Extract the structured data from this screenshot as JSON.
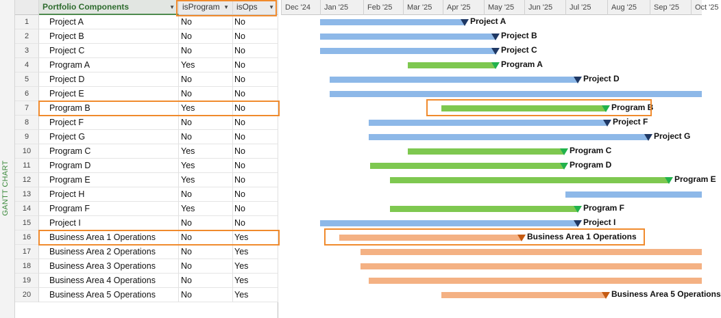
{
  "sidebar": {
    "label": "GANTT CHART"
  },
  "columns": {
    "name": "Portfolio Components",
    "is_program": "isProgram",
    "is_ops": "isOps"
  },
  "timeline": [
    "Dec '24",
    "Jan '25",
    "Feb '25",
    "Mar '25",
    "Apr '25",
    "May '25",
    "Jun '25",
    "Jul '25",
    "Aug '25",
    "Sep '25",
    "Oct '25"
  ],
  "colors": {
    "project": "#8db8e8",
    "program": "#7ec850",
    "operations": "#f4b183",
    "project_milestone": "#1f3864",
    "program_milestone": "#22b24c",
    "operations_milestone": "#c55a11",
    "highlight": "#f08a2c"
  },
  "rows": [
    {
      "num": "1",
      "name": "Project A",
      "is_program": "No",
      "is_ops": "No",
      "type": "project",
      "label": "Project A"
    },
    {
      "num": "2",
      "name": "Project B",
      "is_program": "No",
      "is_ops": "No",
      "type": "project",
      "label": "Project B"
    },
    {
      "num": "3",
      "name": "Project C",
      "is_program": "No",
      "is_ops": "No",
      "type": "project",
      "label": "Project C"
    },
    {
      "num": "4",
      "name": "Program A",
      "is_program": "Yes",
      "is_ops": "No",
      "type": "program",
      "label": "Program A"
    },
    {
      "num": "5",
      "name": "Project D",
      "is_program": "No",
      "is_ops": "No",
      "type": "project",
      "label": "Project D"
    },
    {
      "num": "6",
      "name": "Project E",
      "is_program": "No",
      "is_ops": "No",
      "type": "project",
      "label": ""
    },
    {
      "num": "7",
      "name": "Program B",
      "is_program": "Yes",
      "is_ops": "No",
      "type": "program",
      "label": "Program B",
      "highlight": true
    },
    {
      "num": "8",
      "name": "Project F",
      "is_program": "No",
      "is_ops": "No",
      "type": "project",
      "label": "Project F"
    },
    {
      "num": "9",
      "name": "Project G",
      "is_program": "No",
      "is_ops": "No",
      "type": "project",
      "label": "Project G"
    },
    {
      "num": "10",
      "name": "Program C",
      "is_program": "Yes",
      "is_ops": "No",
      "type": "program",
      "label": "Program C"
    },
    {
      "num": "11",
      "name": "Program D",
      "is_program": "Yes",
      "is_ops": "No",
      "type": "program",
      "label": "Program D"
    },
    {
      "num": "12",
      "name": "Program E",
      "is_program": "Yes",
      "is_ops": "No",
      "type": "program",
      "label": "Program E"
    },
    {
      "num": "13",
      "name": "Project H",
      "is_program": "No",
      "is_ops": "No",
      "type": "project",
      "label": ""
    },
    {
      "num": "14",
      "name": "Program F",
      "is_program": "Yes",
      "is_ops": "No",
      "type": "program",
      "label": "Program F"
    },
    {
      "num": "15",
      "name": "Project I",
      "is_program": "No",
      "is_ops": "No",
      "type": "project",
      "label": "Project I"
    },
    {
      "num": "16",
      "name": "Business Area 1 Operations",
      "is_program": "No",
      "is_ops": "Yes",
      "type": "operations",
      "label": "Business Area 1 Operations",
      "highlight": true
    },
    {
      "num": "17",
      "name": "Business Area 2 Operations",
      "is_program": "No",
      "is_ops": "Yes",
      "type": "operations",
      "label": ""
    },
    {
      "num": "18",
      "name": "Business Area 3 Operations",
      "is_program": "No",
      "is_ops": "Yes",
      "type": "operations",
      "label": ""
    },
    {
      "num": "19",
      "name": "Business Area 4 Operations",
      "is_program": "No",
      "is_ops": "Yes",
      "type": "operations",
      "label": ""
    },
    {
      "num": "20",
      "name": "Business Area 5 Operations",
      "is_program": "No",
      "is_ops": "Yes",
      "type": "operations",
      "label": "Business Area 5 Operations"
    }
  ],
  "schedule": [
    {
      "start": "2025-01-01",
      "end": "2025-04-17"
    },
    {
      "start": "2025-01-01",
      "end": "2025-05-10"
    },
    {
      "start": "2025-01-01",
      "end": "2025-05-10"
    },
    {
      "start": "2025-03-05",
      "end": "2025-05-10"
    },
    {
      "start": "2025-01-08",
      "end": "2025-07-10"
    },
    {
      "start": "2025-01-08",
      "end": null
    },
    {
      "start": "2025-03-31",
      "end": "2025-07-31"
    },
    {
      "start": "2025-02-05",
      "end": "2025-08-01"
    },
    {
      "start": "2025-02-05",
      "end": "2025-08-31"
    },
    {
      "start": "2025-03-05",
      "end": "2025-06-30"
    },
    {
      "start": "2025-02-06",
      "end": "2025-06-30"
    },
    {
      "start": "2025-02-20",
      "end": "2025-09-15"
    },
    {
      "start": "2025-07-01",
      "end": null
    },
    {
      "start": "2025-02-20",
      "end": "2025-07-10"
    },
    {
      "start": "2025-01-01",
      "end": "2025-07-10"
    },
    {
      "start": "2025-01-15",
      "end": "2025-05-30"
    },
    {
      "start": "2025-01-30",
      "end": null
    },
    {
      "start": "2025-01-30",
      "end": null
    },
    {
      "start": "2025-02-05",
      "end": null
    },
    {
      "start": "2025-03-31",
      "end": "2025-07-31"
    }
  ],
  "column_highlight": [
    "is_program",
    "is_ops"
  ]
}
